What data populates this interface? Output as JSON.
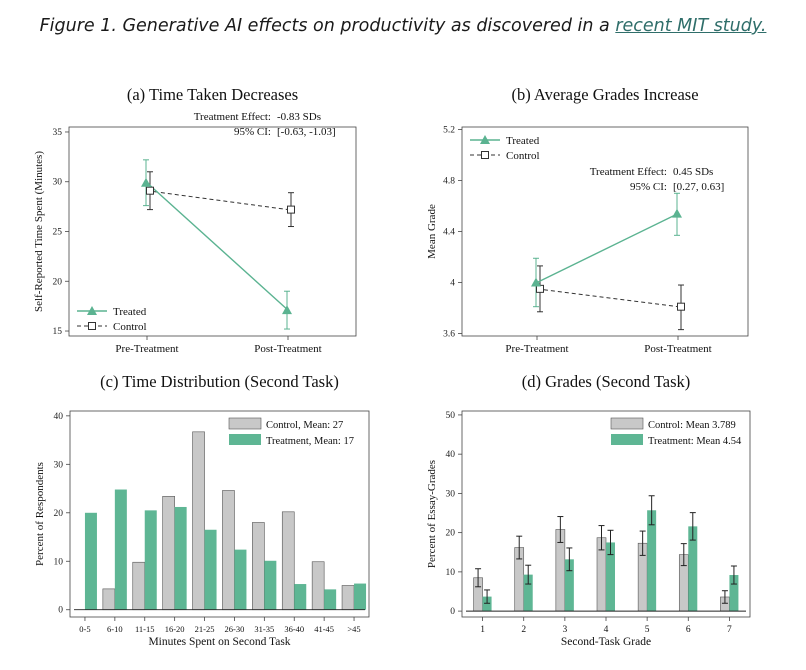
{
  "caption": {
    "text": "Figure 1. Generative AI effects on productivity as discovered in a ",
    "link_text": "recent MIT study.",
    "link_color": "#2f6e6a"
  },
  "colors": {
    "treated": "#5bb391",
    "control_line": "#333333",
    "control_bar": "#c8c8c8",
    "treatment_bar": "#5eb694",
    "error_bar": "#222222",
    "axis": "#444444"
  },
  "chart_data": [
    {
      "type": "line",
      "title": "(a) Time Taken Decreases",
      "xlabel": "",
      "ylabel": "Self-Reported Time Spent (Minutes)",
      "categories": [
        "Pre-Treatment",
        "Post-Treatment"
      ],
      "ylim": [
        14.5,
        35.5
      ],
      "yticks": [
        15,
        20,
        25,
        30,
        35
      ],
      "ytick_labels": [
        "15",
        "20",
        "25",
        "30",
        "35"
      ],
      "legend_position": "bottom-left",
      "annotation": {
        "line1_label": "Treatment Effect:",
        "line1_value": "-0.83 SDs",
        "line2_label": "95% CI:",
        "line2_value": "[-0.63, -1.03]"
      },
      "series": [
        {
          "name": "Treated",
          "marker": "triangle",
          "values": [
            29.9,
            17.1
          ],
          "lower": [
            27.6,
            15.2
          ],
          "upper": [
            32.2,
            19.0
          ]
        },
        {
          "name": "Control",
          "marker": "square",
          "values": [
            29.1,
            27.2
          ],
          "lower": [
            27.2,
            25.5
          ],
          "upper": [
            31.0,
            28.9
          ]
        }
      ]
    },
    {
      "type": "line",
      "title": "(b) Average Grades Increase",
      "xlabel": "",
      "ylabel": "Mean Grade",
      "categories": [
        "Pre-Treatment",
        "Post-Treatment"
      ],
      "ylim": [
        3.58,
        5.22
      ],
      "yticks": [
        3.6,
        4.0,
        4.4,
        4.8,
        5.2
      ],
      "ytick_labels": [
        "3.6",
        "4",
        "4.4",
        "4.8",
        "5.2"
      ],
      "legend_position": "top-left",
      "annotation": {
        "line1_label": "Treatment Effect:",
        "line1_value": "0.45 SDs",
        "line2_label": "95% CI:",
        "line2_value": "[0.27, 0.63]"
      },
      "series": [
        {
          "name": "Treated",
          "marker": "triangle",
          "values": [
            4.0,
            4.54
          ],
          "lower": [
            3.81,
            4.37
          ],
          "upper": [
            4.19,
            4.7
          ]
        },
        {
          "name": "Control",
          "marker": "square",
          "values": [
            3.95,
            3.81
          ],
          "lower": [
            3.77,
            3.63
          ],
          "upper": [
            4.13,
            3.98
          ]
        }
      ]
    },
    {
      "type": "bar",
      "title": "(c) Time Distribution (Second Task)",
      "xlabel": "Minutes Spent on Second Task",
      "ylabel": "Percent of Respondents",
      "categories": [
        "0-5",
        "6-10",
        "11-15",
        "16-20",
        "21-25",
        "26-30",
        "31-35",
        "36-40",
        "41-45",
        ">45"
      ],
      "ylim": [
        -1.5,
        41
      ],
      "yticks": [
        0,
        10,
        20,
        30,
        40
      ],
      "ytick_labels": [
        "0",
        "10",
        "20",
        "30",
        "40"
      ],
      "legend_position": "top-right",
      "series": [
        {
          "name": "Control, Mean: 27",
          "values": [
            0,
            4.3,
            9.8,
            23.4,
            36.7,
            24.6,
            18.0,
            20.2,
            9.9,
            5.0
          ]
        },
        {
          "name": "Treatment, Mean: 17",
          "values": [
            20.0,
            24.8,
            20.5,
            21.2,
            16.5,
            12.4,
            10.1,
            5.3,
            4.2,
            5.4
          ]
        }
      ]
    },
    {
      "type": "bar",
      "title": "(d) Grades (Second Task)",
      "xlabel": "Second-Task Grade",
      "ylabel": "Percent of Essay-Grades",
      "categories": [
        "1",
        "2",
        "3",
        "4",
        "5",
        "6",
        "7"
      ],
      "ylim": [
        -1.5,
        51
      ],
      "yticks": [
        0,
        10,
        20,
        30,
        40,
        50
      ],
      "ytick_labels": [
        "0",
        "10",
        "20",
        "30",
        "40",
        "50"
      ],
      "legend_position": "top-right",
      "series": [
        {
          "name": "Control: Mean 3.789",
          "values": [
            8.5,
            16.2,
            20.8,
            18.7,
            17.3,
            14.4,
            3.6
          ],
          "lower": [
            6.2,
            13.3,
            17.5,
            15.6,
            14.2,
            11.6,
            2.0
          ],
          "upper": [
            10.8,
            19.1,
            24.1,
            21.8,
            20.4,
            17.2,
            5.2
          ]
        },
        {
          "name": "Treatment: Mean 4.54",
          "values": [
            3.7,
            9.3,
            13.2,
            17.5,
            25.7,
            21.6,
            9.2
          ],
          "lower": [
            2.0,
            6.9,
            10.3,
            14.4,
            22.0,
            18.1,
            6.9
          ],
          "upper": [
            5.4,
            11.7,
            16.1,
            20.6,
            29.4,
            25.1,
            11.5
          ]
        }
      ]
    }
  ]
}
